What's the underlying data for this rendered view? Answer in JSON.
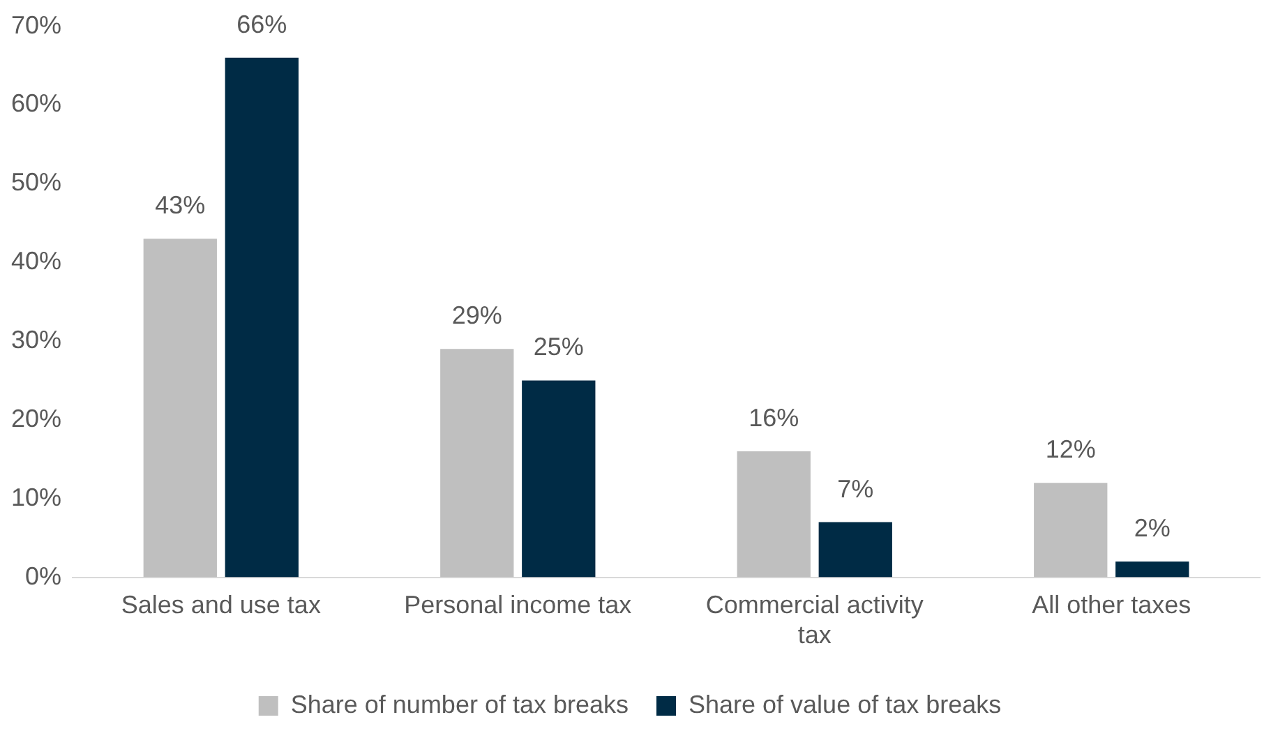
{
  "chart_data": {
    "type": "bar",
    "categories": [
      "Sales and use tax",
      "Personal income tax",
      "Commercial activity tax",
      "All other taxes"
    ],
    "series": [
      {
        "name": "Share of number of tax breaks",
        "color": "#bfbfbf",
        "values": [
          43,
          29,
          16,
          12
        ],
        "value_labels": [
          "43%",
          "29%",
          "16%",
          "12%"
        ]
      },
      {
        "name": "Share of value of tax breaks",
        "color": "#002b45",
        "values": [
          66,
          25,
          7,
          2
        ],
        "value_labels": [
          "66%",
          "25%",
          "7%",
          "2%"
        ]
      }
    ],
    "ylim": [
      0,
      70
    ],
    "yticks": [
      {
        "value": 0,
        "label": "0%"
      },
      {
        "value": 10,
        "label": "10%"
      },
      {
        "value": 20,
        "label": "20%"
      },
      {
        "value": 30,
        "label": "30%"
      },
      {
        "value": 40,
        "label": "40%"
      },
      {
        "value": 50,
        "label": "50%"
      },
      {
        "value": 60,
        "label": "60%"
      },
      {
        "value": 70,
        "label": "70%"
      }
    ],
    "grid": false,
    "legend": "bottom"
  }
}
